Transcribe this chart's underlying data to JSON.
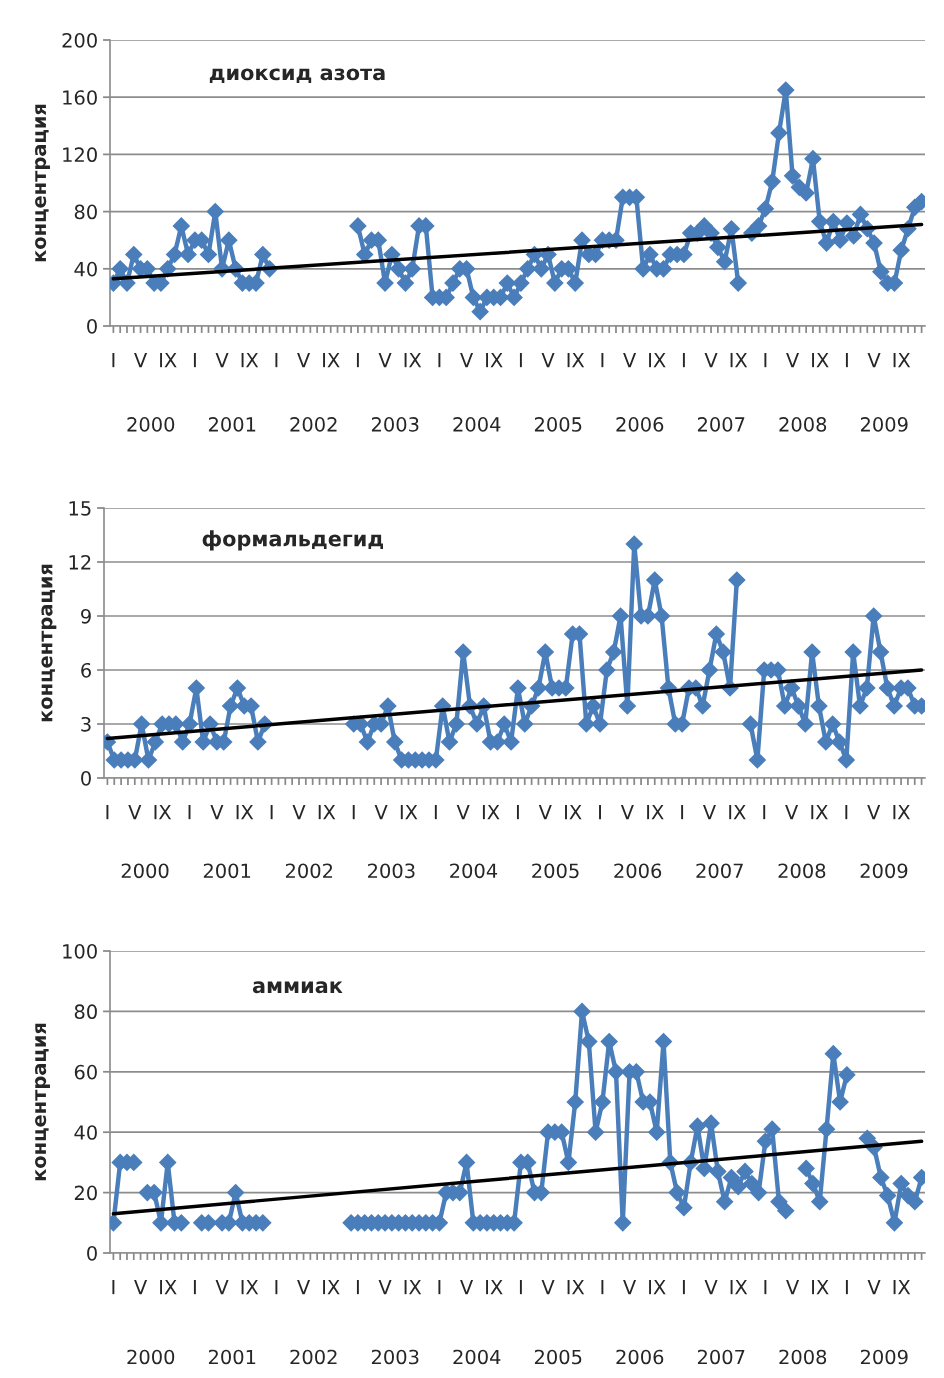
{
  "chart_data": [
    {
      "type": "line",
      "title": "диоксид азота",
      "ylabel": "концентрация",
      "categories": [
        "I",
        null,
        null,
        null,
        "V",
        null,
        null,
        null,
        "IX",
        null,
        null,
        null,
        "I",
        null,
        null,
        null,
        "V",
        null,
        null,
        null,
        "IX",
        null,
        null,
        null,
        "I",
        null,
        null,
        null,
        "V",
        null,
        null,
        null,
        "IX",
        null,
        null,
        null,
        "I",
        null,
        null,
        null,
        "V",
        null,
        null,
        null,
        "IX",
        null,
        null,
        null,
        "I",
        null,
        null,
        null,
        "V",
        null,
        null,
        null,
        "IX",
        null,
        null,
        null,
        "I",
        null,
        null,
        null,
        "V",
        null,
        null,
        null,
        "IX",
        null,
        null,
        null,
        "I",
        null,
        null,
        null,
        "V",
        null,
        null,
        null,
        "IX",
        null,
        null,
        null,
        "I",
        null,
        null,
        null,
        "V",
        null,
        null,
        null,
        "IX",
        null,
        null,
        null,
        "I",
        null,
        null,
        null,
        "V",
        null,
        null,
        null,
        "IX",
        null,
        null,
        null,
        "I",
        null,
        null,
        null,
        "V",
        null,
        null,
        null,
        "IX",
        null,
        null,
        null
      ],
      "series": [
        {
          "color": "#4a7ebb",
          "marker": "diamond",
          "values": [
            30,
            40,
            30,
            50,
            40,
            40,
            30,
            30,
            40,
            50,
            70,
            50,
            60,
            60,
            50,
            80,
            40,
            60,
            40,
            30,
            30,
            30,
            50,
            40,
            null,
            null,
            null,
            null,
            null,
            null,
            null,
            null,
            null,
            null,
            null,
            null,
            70,
            50,
            60,
            60,
            30,
            50,
            40,
            30,
            40,
            70,
            70,
            20,
            20,
            20,
            30,
            40,
            40,
            20,
            10,
            20,
            20,
            20,
            30,
            20,
            30,
            40,
            50,
            40,
            50,
            30,
            40,
            40,
            30,
            60,
            50,
            50,
            60,
            60,
            60,
            90,
            90,
            90,
            40,
            50,
            40,
            40,
            50,
            50,
            50,
            65,
            65,
            70,
            65,
            55,
            45,
            68,
            30,
            null,
            65,
            70,
            82,
            101,
            135,
            165,
            105,
            97,
            93,
            117,
            73,
            58,
            73,
            60,
            72,
            63,
            78,
            68,
            58,
            38,
            30,
            30,
            53,
            68,
            83,
            87
          ]
        },
        {
          "color": "#000000",
          "marker": "none",
          "values": [
            33,
            null,
            null,
            null,
            null,
            null,
            null,
            null,
            null,
            null,
            null,
            null,
            null,
            null,
            null,
            null,
            null,
            null,
            null,
            null,
            null,
            null,
            null,
            null,
            null,
            null,
            null,
            null,
            null,
            null,
            null,
            null,
            null,
            null,
            null,
            null,
            null,
            null,
            null,
            null,
            null,
            null,
            null,
            null,
            null,
            null,
            null,
            null,
            null,
            null,
            null,
            null,
            null,
            null,
            null,
            null,
            null,
            null,
            null,
            null,
            null,
            null,
            null,
            null,
            null,
            null,
            null,
            null,
            null,
            null,
            null,
            null,
            null,
            null,
            null,
            null,
            null,
            null,
            null,
            null,
            null,
            null,
            null,
            null,
            null,
            null,
            null,
            null,
            null,
            null,
            null,
            null,
            null,
            null,
            null,
            null,
            null,
            null,
            null,
            null,
            null,
            null,
            null,
            null,
            null,
            null,
            null,
            null,
            null,
            null,
            null,
            null,
            null,
            null,
            null,
            null,
            null,
            null,
            null,
            71
          ]
        }
      ],
      "ylim": [
        0,
        200
      ],
      "yticks": [
        0,
        40,
        80,
        120,
        160,
        200
      ],
      "annotations": [
        "2000",
        "2001",
        "2002",
        "2003",
        "2004",
        "2005",
        "2006",
        "2007",
        "2008",
        "2009"
      ],
      "grid": "y",
      "line_style": "solid"
    },
    {
      "type": "line",
      "title": "формальдегид",
      "ylabel": "концентрация",
      "categories": [
        "I",
        null,
        null,
        null,
        "V",
        null,
        null,
        null,
        "IX",
        null,
        null,
        null,
        "I",
        null,
        null,
        null,
        "V",
        null,
        null,
        null,
        "IX",
        null,
        null,
        null,
        "I",
        null,
        null,
        null,
        "V",
        null,
        null,
        null,
        "IX",
        null,
        null,
        null,
        "I",
        null,
        null,
        null,
        "V",
        null,
        null,
        null,
        "IX",
        null,
        null,
        null,
        "I",
        null,
        null,
        null,
        "V",
        null,
        null,
        null,
        "IX",
        null,
        null,
        null,
        "I",
        null,
        null,
        null,
        "V",
        null,
        null,
        null,
        "IX",
        null,
        null,
        null,
        "I",
        null,
        null,
        null,
        "V",
        null,
        null,
        null,
        "IX",
        null,
        null,
        null,
        "I",
        null,
        null,
        null,
        "V",
        null,
        null,
        null,
        "IX",
        null,
        null,
        null,
        "I",
        null,
        null,
        null,
        "V",
        null,
        null,
        null,
        "IX",
        null,
        null,
        null,
        "I",
        null,
        null,
        null,
        "V",
        null,
        null,
        null,
        "IX",
        null,
        null,
        null
      ],
      "series": [
        {
          "color": "#4a7ebb",
          "marker": "diamond",
          "values": [
            2,
            1,
            1,
            1,
            1,
            3,
            1,
            2,
            3,
            3,
            3,
            2,
            3,
            5,
            2,
            3,
            2,
            2,
            4,
            5,
            4,
            4,
            2,
            3,
            null,
            null,
            null,
            null,
            null,
            null,
            null,
            null,
            null,
            null,
            null,
            null,
            3,
            3,
            2,
            3,
            3,
            4,
            2,
            1,
            1,
            1,
            1,
            1,
            1,
            4,
            2,
            3,
            7,
            4,
            3,
            4,
            2,
            2,
            3,
            2,
            5,
            3,
            4,
            5,
            7,
            5,
            5,
            5,
            8,
            8,
            3,
            4,
            3,
            6,
            7,
            9,
            4,
            13,
            9,
            9,
            11,
            9,
            5,
            3,
            3,
            5,
            5,
            4,
            6,
            8,
            7,
            5,
            11,
            null,
            3,
            1,
            6,
            6,
            6,
            4,
            5,
            4,
            3,
            7,
            4,
            2,
            3,
            2,
            1,
            7,
            4,
            5,
            9,
            7,
            5,
            4,
            5,
            5,
            4,
            4
          ]
        },
        {
          "color": "#000000",
          "marker": "none",
          "values": [
            2.2,
            null,
            null,
            null,
            null,
            null,
            null,
            null,
            null,
            null,
            null,
            null,
            null,
            null,
            null,
            null,
            null,
            null,
            null,
            null,
            null,
            null,
            null,
            null,
            null,
            null,
            null,
            null,
            null,
            null,
            null,
            null,
            null,
            null,
            null,
            null,
            null,
            null,
            null,
            null,
            null,
            null,
            null,
            null,
            null,
            null,
            null,
            null,
            null,
            null,
            null,
            null,
            null,
            null,
            null,
            null,
            null,
            null,
            null,
            null,
            null,
            null,
            null,
            null,
            null,
            null,
            null,
            null,
            null,
            null,
            null,
            null,
            null,
            null,
            null,
            null,
            null,
            null,
            null,
            null,
            null,
            null,
            null,
            null,
            null,
            null,
            null,
            null,
            null,
            null,
            null,
            null,
            null,
            null,
            null,
            null,
            null,
            null,
            null,
            null,
            null,
            null,
            null,
            null,
            null,
            null,
            null,
            null,
            null,
            null,
            null,
            null,
            null,
            null,
            null,
            null,
            null,
            null,
            null,
            6.0
          ]
        }
      ],
      "ylim": [
        0,
        15
      ],
      "yticks": [
        0,
        3,
        6,
        9,
        12,
        15
      ],
      "annotations": [
        "2000",
        "2001",
        "2002",
        "2003",
        "2004",
        "2005",
        "2006",
        "2007",
        "2008",
        "2009"
      ],
      "grid": "y",
      "line_style": "solid"
    },
    {
      "type": "line",
      "title": "аммиак",
      "ylabel": "концентрация",
      "categories": [
        "I",
        null,
        null,
        null,
        "V",
        null,
        null,
        null,
        "IX",
        null,
        null,
        null,
        "I",
        null,
        null,
        null,
        "V",
        null,
        null,
        null,
        "IX",
        null,
        null,
        null,
        "I",
        null,
        null,
        null,
        "V",
        null,
        null,
        null,
        "IX",
        null,
        null,
        null,
        "I",
        null,
        null,
        null,
        "V",
        null,
        null,
        null,
        "IX",
        null,
        null,
        null,
        "I",
        null,
        null,
        null,
        "V",
        null,
        null,
        null,
        "IX",
        null,
        null,
        null,
        "I",
        null,
        null,
        null,
        "V",
        null,
        null,
        null,
        "IX",
        null,
        null,
        null,
        "I",
        null,
        null,
        null,
        "V",
        null,
        null,
        null,
        "IX",
        null,
        null,
        null,
        "I",
        null,
        null,
        null,
        "V",
        null,
        null,
        null,
        "IX",
        null,
        null,
        null,
        "I",
        null,
        null,
        null,
        "V",
        null,
        null,
        null,
        "IX",
        null,
        null,
        null,
        "I",
        null,
        null,
        null,
        "V",
        null,
        null,
        null,
        "IX",
        null,
        null,
        null
      ],
      "series": [
        {
          "color": "#4a7ebb",
          "marker": "diamond",
          "values": [
            10,
            30,
            30,
            30,
            null,
            20,
            20,
            10,
            30,
            10,
            10,
            null,
            null,
            10,
            10,
            null,
            10,
            10,
            20,
            10,
            10,
            10,
            10,
            null,
            null,
            null,
            null,
            null,
            null,
            null,
            null,
            null,
            null,
            null,
            null,
            10,
            10,
            10,
            10,
            10,
            10,
            10,
            10,
            10,
            10,
            10,
            10,
            10,
            10,
            20,
            20,
            20,
            30,
            10,
            10,
            10,
            10,
            10,
            10,
            10,
            30,
            30,
            20,
            20,
            40,
            40,
            40,
            30,
            50,
            80,
            70,
            40,
            50,
            70,
            60,
            10,
            60,
            60,
            50,
            50,
            40,
            70,
            30,
            20,
            15,
            30,
            42,
            28,
            43,
            27,
            17,
            25,
            22,
            27,
            23,
            20,
            37,
            41,
            17,
            14,
            null,
            null,
            28,
            23,
            17,
            41,
            66,
            50,
            59,
            null,
            null,
            38,
            35,
            25,
            19,
            10,
            23,
            19,
            17,
            25
          ]
        },
        {
          "color": "#000000",
          "marker": "none",
          "values": [
            13,
            null,
            null,
            null,
            null,
            null,
            null,
            null,
            null,
            null,
            null,
            null,
            null,
            null,
            null,
            null,
            null,
            null,
            null,
            null,
            null,
            null,
            null,
            null,
            null,
            null,
            null,
            null,
            null,
            null,
            null,
            null,
            null,
            null,
            null,
            null,
            null,
            null,
            null,
            null,
            null,
            null,
            null,
            null,
            null,
            null,
            null,
            null,
            null,
            null,
            null,
            null,
            null,
            null,
            null,
            null,
            null,
            null,
            null,
            null,
            null,
            null,
            null,
            null,
            null,
            null,
            null,
            null,
            null,
            null,
            null,
            null,
            null,
            null,
            null,
            null,
            null,
            null,
            null,
            null,
            null,
            null,
            null,
            null,
            null,
            null,
            null,
            null,
            null,
            null,
            null,
            null,
            null,
            null,
            null,
            null,
            null,
            null,
            null,
            null,
            null,
            null,
            null,
            null,
            null,
            null,
            null,
            null,
            null,
            null,
            null,
            null,
            null,
            null,
            null,
            null,
            null,
            null,
            null,
            37
          ]
        }
      ],
      "ylim": [
        0,
        100
      ],
      "yticks": [
        0,
        20,
        40,
        60,
        80,
        100
      ],
      "annotations": [
        "2000",
        "2001",
        "2002",
        "2003",
        "2004",
        "2005",
        "2006",
        "2007",
        "2008",
        "2009"
      ],
      "grid": "y",
      "line_style": "solid"
    }
  ]
}
